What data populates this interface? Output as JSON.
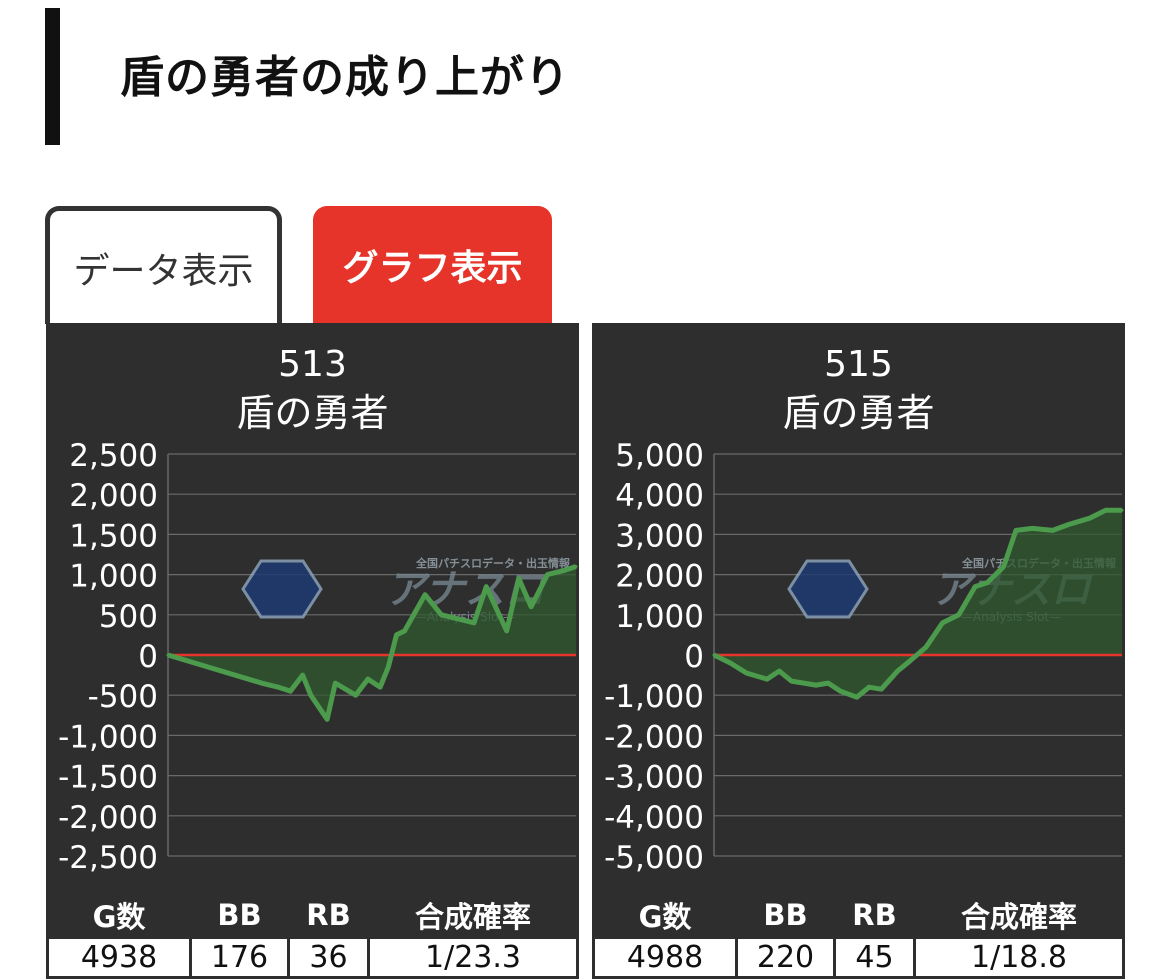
{
  "page": {
    "title": "盾の勇者の成り上がり"
  },
  "tabs": [
    {
      "label": "データ表示",
      "active": false
    },
    {
      "label": "グラフ表示",
      "active": true
    }
  ],
  "colors": {
    "accent": "#e6342a",
    "panel_bg": "#2e2e2e",
    "line": "#4c9a4c",
    "fill": "#2f5a2f",
    "zero_line": "#e6342a"
  },
  "watermark": {
    "text": "アナスロ",
    "subtext": "—Analysis Slot—",
    "tagline": "全国パチスロデータ・出玉情報"
  },
  "stats_headers": [
    "G数",
    "BB",
    "RB",
    "合成確率"
  ],
  "machines": [
    {
      "number": "513",
      "name": "盾の勇者",
      "yticks": [
        "2,500",
        "2,000",
        "1,500",
        "1,000",
        "500",
        "0",
        "-500",
        "-1,000",
        "-1,500",
        "-2,000",
        "-2,500"
      ],
      "stats": [
        "4938",
        "176",
        "36",
        "1/23.3"
      ]
    },
    {
      "number": "515",
      "name": "盾の勇者",
      "yticks": [
        "5,000",
        "4,000",
        "3,000",
        "2,000",
        "1,000",
        "0",
        "-1,000",
        "-2,000",
        "-3,000",
        "-4,000",
        "-5,000"
      ],
      "stats": [
        "4988",
        "220",
        "45",
        "1/18.8"
      ]
    }
  ],
  "chart_data": [
    {
      "type": "area",
      "title": "513 盾の勇者",
      "ylim": [
        -2500,
        2500
      ],
      "grid": true,
      "x": [
        0,
        0.23,
        0.27,
        0.3,
        0.33,
        0.35,
        0.39,
        0.41,
        0.46,
        0.49,
        0.52,
        0.54,
        0.56,
        0.58,
        0.63,
        0.67,
        0.75,
        0.78,
        0.83,
        0.86,
        0.89,
        0.93,
        0.97,
        1.0
      ],
      "values": [
        0,
        -350,
        -400,
        -450,
        -250,
        -500,
        -800,
        -350,
        -500,
        -300,
        -400,
        -150,
        250,
        300,
        750,
        500,
        400,
        850,
        300,
        950,
        600,
        1000,
        1050,
        1100
      ]
    },
    {
      "type": "area",
      "title": "515 盾の勇者",
      "ylim": [
        -5000,
        5000
      ],
      "grid": true,
      "x": [
        0,
        0.04,
        0.08,
        0.13,
        0.16,
        0.19,
        0.22,
        0.25,
        0.28,
        0.31,
        0.35,
        0.38,
        0.41,
        0.45,
        0.48,
        0.52,
        0.56,
        0.6,
        0.64,
        0.67,
        0.71,
        0.74,
        0.78,
        0.83,
        0.87,
        0.92,
        0.96,
        1.0
      ],
      "values": [
        0,
        -200,
        -450,
        -600,
        -400,
        -650,
        -700,
        -750,
        -700,
        -900,
        -1050,
        -800,
        -850,
        -400,
        -150,
        200,
        800,
        1000,
        1700,
        1800,
        2200,
        3100,
        3150,
        3100,
        3250,
        3400,
        3600,
        3600
      ]
    }
  ]
}
